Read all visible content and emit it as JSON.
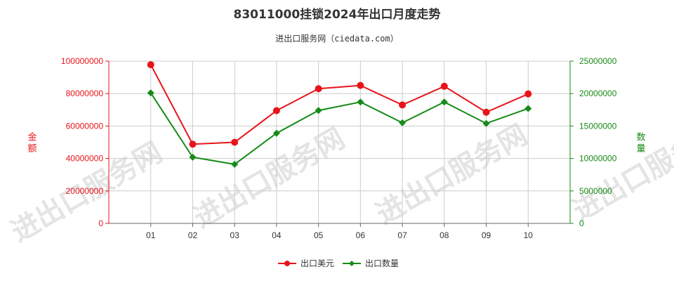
{
  "chart_data": {
    "type": "line",
    "title": "83011000挂锁2024年出口月度走势",
    "subtitle": "进出口服务网（ciedata.com）",
    "categories": [
      "01",
      "02",
      "03",
      "04",
      "05",
      "06",
      "07",
      "08",
      "09",
      "10"
    ],
    "y_left": {
      "label": "金额",
      "ylim": [
        0,
        100000000
      ],
      "ticks": [
        0,
        20000000,
        40000000,
        60000000,
        80000000,
        100000000
      ],
      "color": "#e8141b"
    },
    "y_right": {
      "label": "数量",
      "ylim": [
        0,
        25000000
      ],
      "ticks": [
        0,
        5000000,
        10000000,
        15000000,
        20000000,
        25000000
      ],
      "color": "#178a17"
    },
    "series": [
      {
        "name": "出口美元",
        "axis": "left",
        "color": "#e8141b",
        "values": [
          97800000,
          48800000,
          50000000,
          69500000,
          83000000,
          85000000,
          73000000,
          84500000,
          68500000,
          79800000
        ]
      },
      {
        "name": "出口数量",
        "axis": "right",
        "color": "#178a17",
        "values": [
          20100000,
          10200000,
          9100000,
          13900000,
          17400000,
          18700000,
          15500000,
          18700000,
          15400000,
          17700000
        ]
      }
    ],
    "grid": true,
    "legend_position": "bottom-center",
    "watermark": "进出口服务网"
  }
}
